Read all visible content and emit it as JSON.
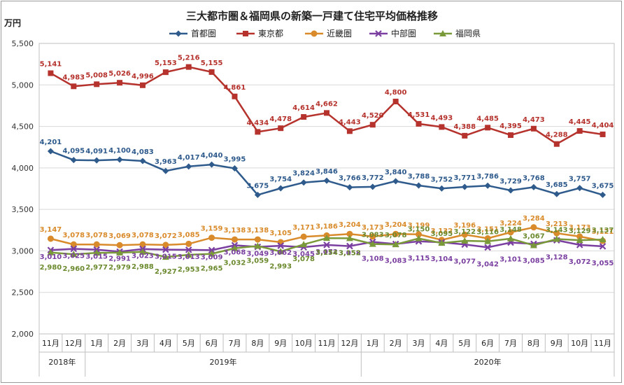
{
  "chart_data": {
    "type": "line",
    "title": "三大都市圏＆福岡県の新築一戸建て住宅平均価格推移",
    "ylabel": "万円",
    "xlabel": "",
    "ylim": [
      2000,
      5500
    ],
    "yticks": [
      "2,000",
      "2,500",
      "3,000",
      "3,500",
      "4,000",
      "4,500",
      "5,000",
      "5,500"
    ],
    "grid": true,
    "legend_position": "top",
    "categories": [
      "11月",
      "12月",
      "1月",
      "2月",
      "3月",
      "4月",
      "5月",
      "6月",
      "7月",
      "8月",
      "9月",
      "10月",
      "11月",
      "12月",
      "1月",
      "2月",
      "3月",
      "4月",
      "5月",
      "6月",
      "7月",
      "8月",
      "9月",
      "10月",
      "11月"
    ],
    "year_groups": [
      {
        "label": "2018年",
        "count": 2
      },
      {
        "label": "2019年",
        "count": 12
      },
      {
        "label": "2020年",
        "count": 11
      }
    ],
    "series": [
      {
        "name": "首都圏",
        "color": "#2E5A8C",
        "marker": "diamond",
        "values": [
          4201,
          4095,
          4091,
          4100,
          4083,
          3963,
          4017,
          4040,
          3995,
          3675,
          3754,
          3824,
          3846,
          3766,
          3772,
          3840,
          3788,
          3752,
          3771,
          3786,
          3729,
          3768,
          3685,
          3757,
          3675
        ]
      },
      {
        "name": "東京都",
        "color": "#B5322D",
        "marker": "square",
        "values": [
          5141,
          4983,
          5008,
          5026,
          4996,
          5153,
          5216,
          5155,
          4861,
          4434,
          4478,
          4614,
          4662,
          4443,
          4520,
          4800,
          4531,
          4493,
          4388,
          4485,
          4395,
          4473,
          4288,
          4445,
          4404
        ]
      },
      {
        "name": "近畿圏",
        "color": "#D98B2B",
        "marker": "circle",
        "values": [
          3147,
          3078,
          3078,
          3069,
          3078,
          3072,
          3085,
          3159,
          3138,
          3138,
          3105,
          3171,
          3186,
          3204,
          3173,
          3204,
          3199,
          3132,
          3196,
          3151,
          3224,
          3284,
          3213,
          3173,
          3121
        ]
      },
      {
        "name": "中部圏",
        "color": "#7A3FA0",
        "marker": "x",
        "values": [
          3010,
          3025,
          3015,
          2991,
          3023,
          3015,
          3013,
          3009,
          3068,
          3049,
          3062,
          3045,
          3072,
          3058,
          3108,
          3083,
          3115,
          3104,
          3077,
          3042,
          3101,
          3085,
          3128,
          3072,
          3055
        ]
      },
      {
        "name": "福岡県",
        "color": "#7A9A3A",
        "marker": "triangle",
        "values": [
          2980,
          2960,
          2977,
          2979,
          2988,
          2927,
          2953,
          2965,
          3032,
          3059,
          2993,
          3078,
          3154,
          3152,
          3083,
          3078,
          3150,
          3095,
          3122,
          3116,
          3148,
          3067,
          3143,
          3129,
          3137
        ]
      }
    ]
  }
}
